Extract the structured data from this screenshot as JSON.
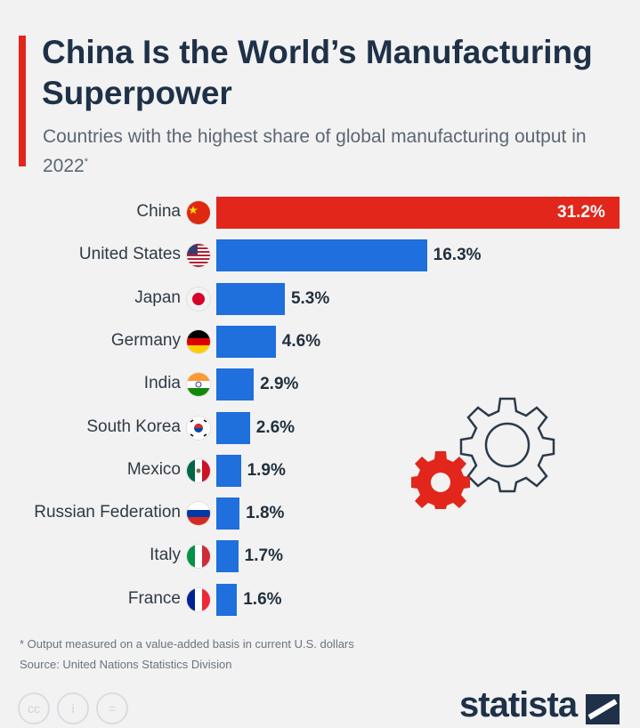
{
  "header": {
    "title": "China Is the World’s Manufacturing Superpower",
    "subtitle": "Countries with the highest share of global manufacturing output in 2022",
    "subtitle_mark": "*"
  },
  "chart_data": {
    "type": "bar",
    "orientation": "horizontal",
    "title": "China Is the World’s Manufacturing Superpower",
    "subtitle": "Countries with the highest share of global manufacturing output in 2022*",
    "categories": [
      "China",
      "United States",
      "Japan",
      "Germany",
      "India",
      "South Korea",
      "Mexico",
      "Russian Federation",
      "Italy",
      "France"
    ],
    "values": [
      31.2,
      16.3,
      5.3,
      4.6,
      2.9,
      2.6,
      1.9,
      1.8,
      1.7,
      1.6
    ],
    "value_labels": [
      "31.2%",
      "16.3%",
      "5.3%",
      "4.6%",
      "2.9%",
      "2.6%",
      "1.9%",
      "1.8%",
      "1.7%",
      "1.6%"
    ],
    "unit": "%",
    "colors": {
      "highlight": "#e2261b",
      "default": "#1f6fdc"
    },
    "highlight_index": 0,
    "grid": false,
    "legend": "none",
    "flag_icons": [
      "china-flag-icon",
      "us-flag-icon",
      "japan-flag-icon",
      "germany-flag-icon",
      "india-flag-icon",
      "south-korea-flag-icon",
      "mexico-flag-icon",
      "russia-flag-icon",
      "italy-flag-icon",
      "france-flag-icon"
    ]
  },
  "footer": {
    "note": "* Output measured on a value-added basis in current U.S. dollars",
    "source": "Source: United Nations Statistics Division",
    "brand": "statista",
    "license_icons": [
      "cc",
      "i",
      "="
    ]
  }
}
